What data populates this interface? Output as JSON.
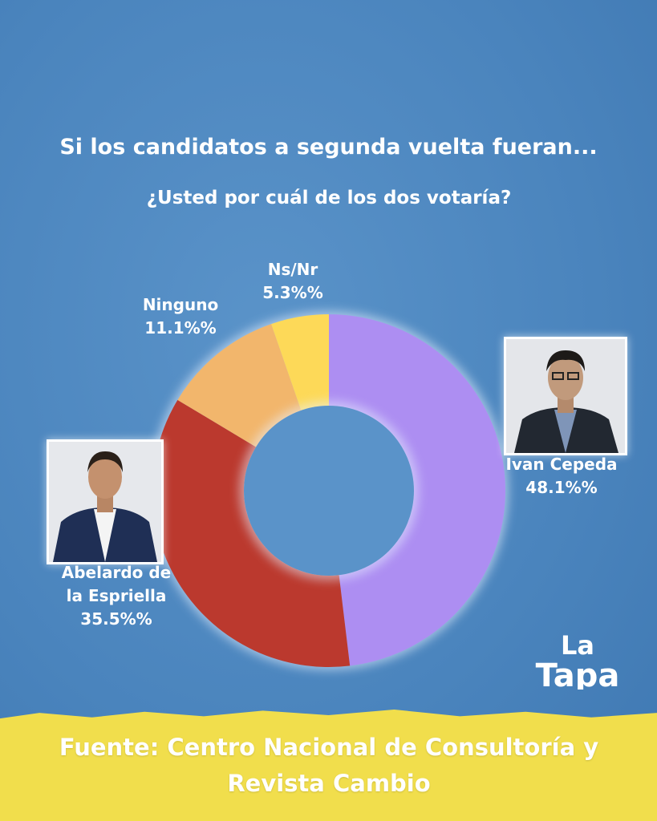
{
  "header": {
    "title": "Si los candidatos a segunda vuelta fueran...",
    "subtitle": "¿Usted por cuál de los dos votaría?"
  },
  "chart_data": {
    "type": "pie",
    "variant": "donut",
    "title": "Si los candidatos a segunda vuelta fueran...",
    "subtitle": "¿Usted por cuál de los dos votaría?",
    "start": "top",
    "direction": "clockwise",
    "slices": [
      {
        "label": "Ivan Cepeda",
        "value": 48.1,
        "display": "48.1%%",
        "color": "#ad8ef2"
      },
      {
        "label": "Abelardo de la Espriella",
        "value": 35.5,
        "display": "35.5%%",
        "color": "#bb392e"
      },
      {
        "label": "Ninguno",
        "value": 11.1,
        "display": "11.1%%",
        "color": "#f2b66c"
      },
      {
        "label": "Ns/Nr",
        "value": 5.3,
        "display": "5.3%%",
        "color": "#fdd958"
      }
    ]
  },
  "labels": {
    "cepeda_name": "Ivan Cepeda",
    "abelardo_name_1": "Abelardo de",
    "abelardo_name_2": "la Espriella"
  },
  "footer": {
    "source_line1": "Fuente: Centro Nacional de Consultoría y",
    "source_line2": "Revista Cambio"
  },
  "logo": {
    "text": "La Tapa"
  }
}
